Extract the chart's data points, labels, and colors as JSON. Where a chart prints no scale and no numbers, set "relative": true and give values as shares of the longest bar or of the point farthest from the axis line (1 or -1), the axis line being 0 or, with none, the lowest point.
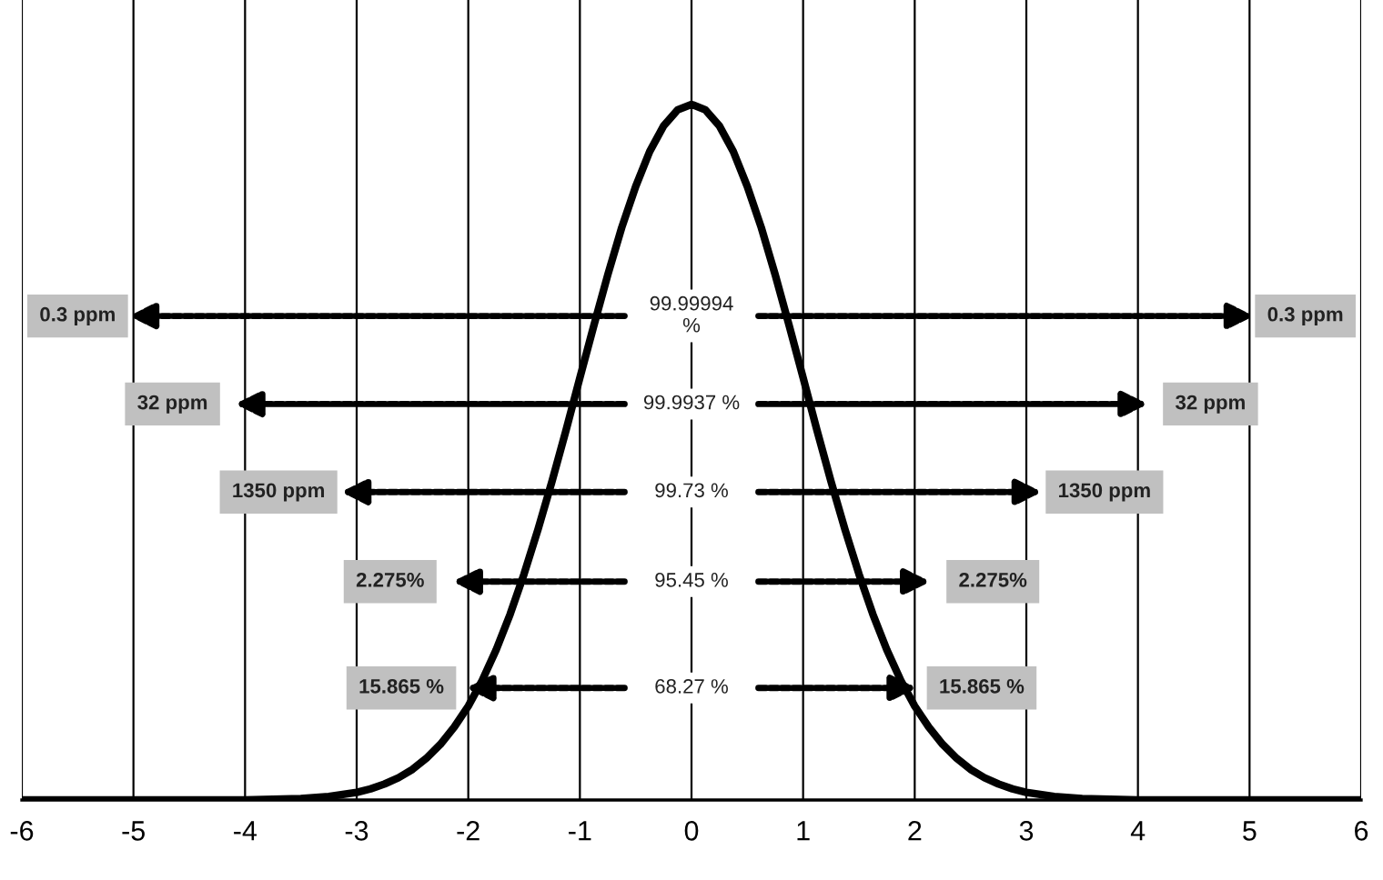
{
  "chart_data": {
    "type": "line",
    "relative": true,
    "x": [
      -6,
      -5.5,
      -5,
      -4.5,
      -4,
      -3.75,
      -3.5,
      -3.25,
      -3,
      -2.875,
      -2.75,
      -2.625,
      -2.5,
      -2.375,
      -2.25,
      -2.125,
      -2,
      -1.875,
      -1.75,
      -1.625,
      -1.5,
      -1.375,
      -1.25,
      -1.125,
      -1,
      -0.875,
      -0.75,
      -0.625,
      -0.5,
      -0.375,
      -0.25,
      -0.125,
      0,
      0.125,
      0.25,
      0.375,
      0.5,
      0.625,
      0.75,
      0.875,
      1,
      1.125,
      1.25,
      1.375,
      1.5,
      1.625,
      1.75,
      1.875,
      2,
      2.125,
      2.25,
      2.375,
      2.5,
      2.625,
      2.75,
      2.875,
      3,
      3.25,
      3.5,
      3.75,
      4,
      4.5,
      5,
      5.5,
      6
    ],
    "series": [
      {
        "color": "#000000",
        "values": [
          0,
          0,
          0,
          0,
          0,
          0.001,
          0.002,
          0.005,
          0.011,
          0.016,
          0.023,
          0.032,
          0.044,
          0.06,
          0.08,
          0.105,
          0.135,
          0.172,
          0.216,
          0.267,
          0.325,
          0.389,
          0.458,
          0.531,
          0.607,
          0.682,
          0.755,
          0.823,
          0.882,
          0.932,
          0.969,
          0.992,
          1,
          0.992,
          0.969,
          0.932,
          0.882,
          0.823,
          0.755,
          0.682,
          0.607,
          0.531,
          0.458,
          0.389,
          0.325,
          0.267,
          0.216,
          0.172,
          0.135,
          0.105,
          0.08,
          0.06,
          0.044,
          0.032,
          0.023,
          0.016,
          0.011,
          0.005,
          0.002,
          0.001,
          0,
          0,
          0,
          0,
          0
        ]
      }
    ],
    "xlim": [
      -6,
      6
    ],
    "xticks": [
      -6,
      -5,
      -4,
      -3,
      -2,
      -1,
      0,
      1,
      2,
      3,
      4,
      5,
      6
    ],
    "grid": "x",
    "marker": "none",
    "line_style": "solid",
    "annotations": [
      "99.99994\n%",
      "0.3 ppm",
      "0.3 ppm",
      "99.9937 %",
      "32 ppm",
      "32 ppm",
      "99.73 %",
      "1350 ppm",
      "1350 ppm",
      "95.45 %",
      "2.275%",
      "2.275%",
      "68.27 %",
      "15.865 %",
      "15.865 %"
    ]
  }
}
